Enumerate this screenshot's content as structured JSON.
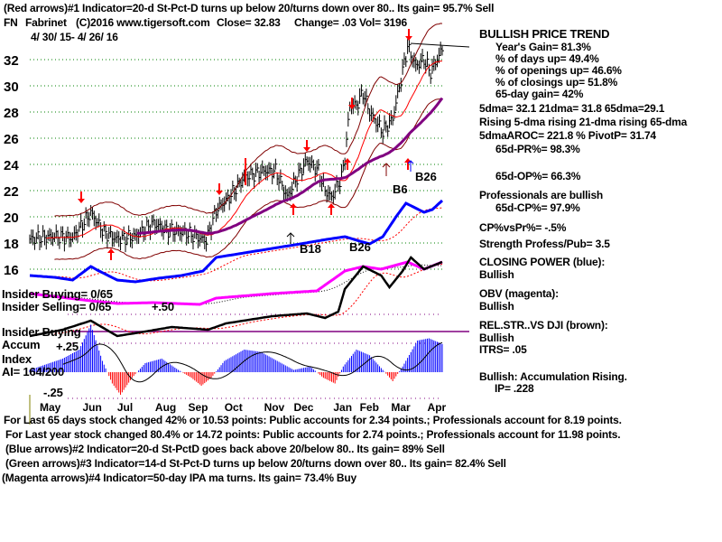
{
  "header": {
    "line1": "(Red arrows)#1 Indicator=20-d St-Pct-D turns up below 20/turns down over 80.. Its gain= 95.7% Sell",
    "symbol": "FN",
    "company": "Fabrinet",
    "copyright": "(C)2016 www.tigersoft.com",
    "close": "Close=  32.83",
    "change": "Change= .03 Vol= 3196",
    "date_range": "4/ 30/ 15- 4/ 26/ 16"
  },
  "stats": {
    "trend": "BULLISH PRICE TREND",
    "years_gain": "Year's Gain= 81.3%",
    "days_up": "% of days up= 49.4%",
    "openings_up": "% of openings up= 46.6%",
    "closings_up": "% of closings up= 51.8%",
    "gain65": "65-day gain= 42%",
    "dmas": "5dma= 32.1 21dma= 31.8 65dma=29.1",
    "rising": "Rising 5-dma rising 21-dma rising 65-dma",
    "aroc": "5dmaAROC= 221.8 %  PivotP= 31.74",
    "pr65": "65d-PR%= 98.3%",
    "op65": "65d-OP%= 66.3%",
    "professionals": "Professionals are bullish",
    "cp65": "65d-CP%= 97.9%",
    "cpvspr": "CP%vsPr%= -.5%",
    "strength": "Strength Profess/Pub= 3.5",
    "cp_title": "CLOSING POWER (blue):",
    "cp_status": "Bullish",
    "obv_title": "OBV (magenta):",
    "obv_status": "Bullish",
    "rs_title": "REL.STR..VS DJI (brown):",
    "rs_status": "Bullish",
    "itrs": "ITRS= .05",
    "accum": "Bullish: Accumulation Rising.",
    "ip": "IP=  .228"
  },
  "left_labels": {
    "insider_buying": "Insider Buying= 0/65",
    "insider_selling": "Insider Selling= 0/65",
    "insider_buying2": "Insider Buying",
    "accum": "Accum",
    "index": "Index",
    "ai": "AI= 164/200",
    "p50": "+.50",
    "p25": "+.25",
    "m25": "-.25"
  },
  "footer": [
    "For Last 65 days stock changed  42% or  10.53 points:  Public accounts for  2.34 points.;  Professionals account for  8.19 points.",
    "For Last year stock changed  80.4% or  14.72 points:  Public accounts for  2.74 points.;  Professionals account for  11.98 points.",
    "(Blue arrows)#2 Indicator=20-d St-PctD goes back above 20/below 80.. Its gain= 89% Sell",
    "(Green arrows)#3 Indicator=14-d St-Pct-D turns up below 20/turns down over 80.. Its gain= 82.4% Sell",
    "(Magenta arrows)#4 Indicator=50-day IPA ma turns. Its gain= 73.4% Buy"
  ],
  "annotations": [
    "B6",
    "B26",
    "B18",
    "B26"
  ],
  "colors": {
    "price": "#000000",
    "ma21": "#ff0000",
    "ma65": "#800080",
    "bands": "#800000",
    "cp": "#0000ff",
    "obv": "#ff00ff",
    "grid": "#008000",
    "ai_pos": "#0000ff",
    "ai_neg": "#ff0000",
    "arrow": "#ff0000"
  },
  "chart_data": {
    "type": "line",
    "title": "FN Fabrinet daily price 4/30/15 - 4/26/16",
    "x_unit": "trading day index",
    "x_tick_labels": [
      "May",
      "Jun",
      "Jul",
      "Aug",
      "Sep",
      "Oct",
      "Nov",
      "Dec",
      "Jan",
      "Feb",
      "Mar",
      "Apr"
    ],
    "x_tick_days": [
      6,
      32,
      53,
      76,
      96,
      118,
      142,
      160,
      184,
      200,
      219,
      241
    ],
    "y_tick_labels": [
      "16",
      "18",
      "20",
      "22",
      "24",
      "26",
      "28",
      "30",
      "32"
    ],
    "ylim": [
      15.5,
      33.5
    ],
    "price_points": [
      [
        0,
        18.3
      ],
      [
        15,
        18.5
      ],
      [
        26,
        18.4
      ],
      [
        37,
        20.3
      ],
      [
        45,
        18.8
      ],
      [
        53,
        18.3
      ],
      [
        64,
        18.5
      ],
      [
        75,
        19.5
      ],
      [
        83,
        19.0
      ],
      [
        94,
        18.8
      ],
      [
        107,
        18.2
      ],
      [
        113,
        20.5
      ],
      [
        121,
        21.5
      ],
      [
        130,
        23.0
      ],
      [
        141,
        23.5
      ],
      [
        149,
        23.5
      ],
      [
        156,
        21.5
      ],
      [
        162,
        23.0
      ],
      [
        168,
        24.3
      ],
      [
        175,
        23.5
      ],
      [
        179,
        22.0
      ],
      [
        183,
        21.5
      ],
      [
        189,
        23.0
      ],
      [
        191,
        24.5
      ],
      [
        194,
        28.5
      ],
      [
        198,
        28.5
      ],
      [
        202,
        29.5
      ],
      [
        206,
        28.0
      ],
      [
        214,
        26.5
      ],
      [
        220,
        27.5
      ],
      [
        225,
        30.5
      ],
      [
        229,
        33.0
      ],
      [
        234,
        31.5
      ],
      [
        239,
        32.0
      ],
      [
        243,
        31.0
      ],
      [
        250,
        32.8
      ]
    ],
    "closing_power": [
      [
        0,
        25
      ],
      [
        15,
        23
      ],
      [
        26,
        20
      ],
      [
        37,
        35
      ],
      [
        42,
        30
      ],
      [
        53,
        20
      ],
      [
        64,
        18
      ],
      [
        78,
        22
      ],
      [
        92,
        25
      ],
      [
        105,
        30
      ],
      [
        113,
        45
      ],
      [
        130,
        50
      ],
      [
        147,
        55
      ],
      [
        164,
        60
      ],
      [
        180,
        65
      ],
      [
        191,
        68
      ],
      [
        202,
        62
      ],
      [
        206,
        60
      ],
      [
        214,
        68
      ],
      [
        222,
        90
      ],
      [
        228,
        105
      ],
      [
        239,
        95
      ],
      [
        244,
        98
      ],
      [
        250,
        108
      ]
    ],
    "obv": [
      [
        0,
        5
      ],
      [
        37,
        -3
      ],
      [
        53,
        -6
      ],
      [
        75,
        -5
      ],
      [
        103,
        -7
      ],
      [
        113,
        0
      ],
      [
        147,
        5
      ],
      [
        174,
        8
      ],
      [
        191,
        30
      ],
      [
        202,
        35
      ],
      [
        213,
        32
      ],
      [
        229,
        40
      ],
      [
        239,
        32
      ],
      [
        250,
        40
      ]
    ],
    "rel_strength": [
      [
        0,
        -5
      ],
      [
        20,
        2
      ],
      [
        37,
        12
      ],
      [
        53,
        -5
      ],
      [
        70,
        0
      ],
      [
        86,
        5
      ],
      [
        108,
        2
      ],
      [
        119,
        9
      ],
      [
        147,
        17
      ],
      [
        168,
        20
      ],
      [
        179,
        15
      ],
      [
        187,
        22
      ],
      [
        191,
        47
      ],
      [
        202,
        72
      ],
      [
        213,
        62
      ],
      [
        218,
        49
      ],
      [
        226,
        67
      ],
      [
        231,
        82
      ],
      [
        239,
        69
      ],
      [
        250,
        77
      ]
    ],
    "accumulation_index": [
      [
        0,
        0.02
      ],
      [
        20,
        0.12
      ],
      [
        30,
        0.2
      ],
      [
        37,
        0.42
      ],
      [
        44,
        0.1
      ],
      [
        50,
        -0.1
      ],
      [
        55,
        -0.2
      ],
      [
        62,
        -0.05
      ],
      [
        70,
        0.08
      ],
      [
        80,
        0.12
      ],
      [
        90,
        0.02
      ],
      [
        98,
        -0.05
      ],
      [
        104,
        -0.12
      ],
      [
        110,
        -0.05
      ],
      [
        118,
        0.1
      ],
      [
        130,
        0.2
      ],
      [
        140,
        0.18
      ],
      [
        150,
        0.1
      ],
      [
        160,
        0.02
      ],
      [
        170,
        0.05
      ],
      [
        178,
        -0.05
      ],
      [
        185,
        -0.1
      ],
      [
        190,
        0.05
      ],
      [
        198,
        0.2
      ],
      [
        206,
        0.15
      ],
      [
        214,
        0.02
      ],
      [
        220,
        -0.08
      ],
      [
        226,
        0.05
      ],
      [
        235,
        0.28
      ],
      [
        242,
        0.3
      ],
      [
        250,
        0.25
      ]
    ]
  }
}
